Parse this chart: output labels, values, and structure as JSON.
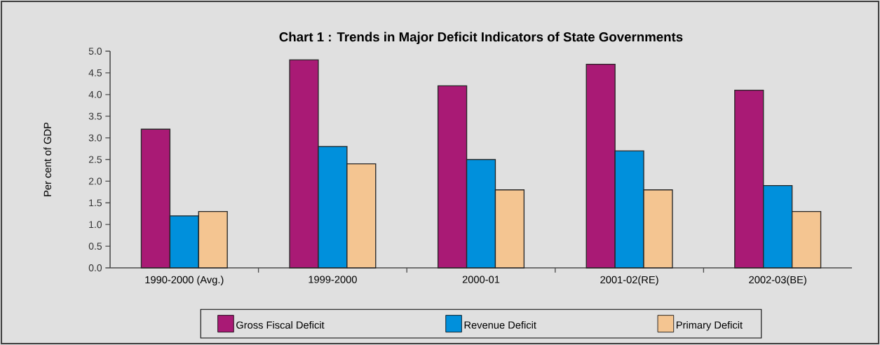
{
  "chart_data": {
    "type": "bar",
    "title": "Chart 1 : Trends in Major Deficit Indicators of State Governments",
    "ylabel": "Per cent of GDP",
    "categories": [
      "1990-2000 (Avg.)",
      "1999-2000",
      "2000-01",
      "2001-02(RE)",
      "2002-03(BE)"
    ],
    "series": [
      {
        "name": "Gross Fiscal Deficit",
        "color": "#a91a75",
        "values": [
          3.2,
          4.8,
          4.2,
          4.7,
          4.1
        ]
      },
      {
        "name": "Revenue Deficit",
        "color": "#0090dc",
        "values": [
          1.2,
          2.8,
          2.5,
          2.7,
          1.9
        ]
      },
      {
        "name": "Primary Deficit",
        "color": "#f4c591",
        "values": [
          1.3,
          2.4,
          1.8,
          1.8,
          1.3
        ]
      }
    ],
    "ylim": [
      0,
      5
    ],
    "yticks": [
      {
        "value": 0,
        "label": "0.0"
      },
      {
        "value": 0.5,
        "label": "0.5"
      },
      {
        "value": 1,
        "label": "1.0"
      },
      {
        "value": 1.5,
        "label": "1.5"
      },
      {
        "value": 2,
        "label": "2.0"
      },
      {
        "value": 2.5,
        "label": "2.5"
      },
      {
        "value": 3,
        "label": "3.0"
      },
      {
        "value": 3.5,
        "label": "3.5"
      },
      {
        "value": 4,
        "label": "4.0"
      },
      {
        "value": 4.5,
        "label": "4.5"
      },
      {
        "value": 5,
        "label": "5.0"
      }
    ],
    "grid": false,
    "legend": "bottom"
  }
}
